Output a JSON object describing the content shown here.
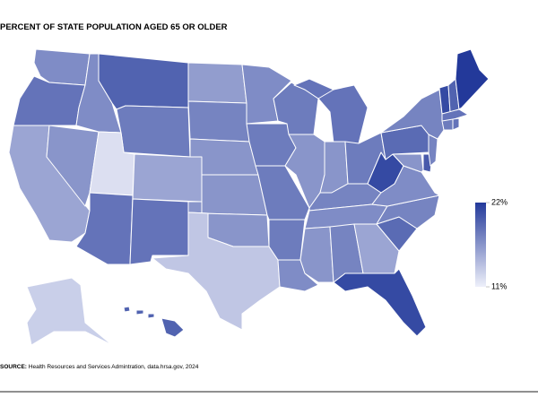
{
  "chart_data": {
    "type": "choropleth",
    "title": "PERCENT OF STATE POPULATION AGED 65 OR OLDER",
    "values": [
      17,
      18.5,
      15.5,
      16.5,
      17,
      19.5,
      18,
      12,
      15.5,
      18.5,
      18.5,
      16,
      17.5,
      16.5,
      16.5,
      16.5,
      13.5,
      17,
      18,
      18,
      18,
      17,
      18,
      16.5,
      18.5,
      16.5,
      18,
      17.5,
      17,
      16.5,
      17.5,
      15.5,
      21,
      19,
      17.5,
      17,
      21,
      16.5,
      20,
      19,
      17.5,
      17.5,
      21,
      19.5,
      22,
      18.5,
      18,
      18.5,
      13,
      19.5
    ],
    "clim": [
      11,
      22
    ],
    "colors": [
      "#eef0fa",
      "#23399a"
    ],
    "legend_ticks": [
      {
        "value": 22,
        "label": "22%"
      },
      {
        "value": 11,
        "label": "11%"
      }
    ],
    "source_label": "SOURCE:",
    "source": "Health Resources and Services Admintration, data.hrsa.gov, 2024"
  }
}
